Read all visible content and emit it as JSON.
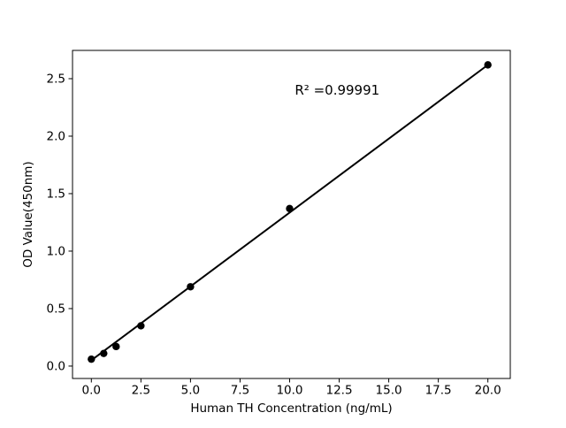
{
  "figure": {
    "background": "#ffffff"
  },
  "chart_data": {
    "type": "scatter",
    "title": "",
    "xlabel": "Human TH Concentration (ng/mL)",
    "ylabel": "OD Value(450nm)",
    "x": [
      0,
      0.625,
      1.25,
      2.5,
      5,
      10,
      20
    ],
    "y": [
      0.06,
      0.11,
      0.17,
      0.35,
      0.69,
      1.37,
      2.62
    ],
    "trendline": {
      "x": [
        0,
        20
      ],
      "y": [
        0.05,
        2.62
      ]
    },
    "annotation": {
      "text": "R² =0.99991",
      "x": 12.4,
      "y": 2.4
    },
    "r_squared": 0.99991,
    "xticks": [
      0,
      2.5,
      5,
      7.5,
      10,
      12.5,
      15,
      17.5,
      20
    ],
    "yticks": [
      0,
      0.5,
      1,
      1.5,
      2,
      2.5
    ],
    "xlim": [
      -0.95,
      21.13
    ],
    "ylim": [
      -0.108,
      2.746
    ],
    "grid": false,
    "legend": false,
    "marker_color": "#000000",
    "line_color": "#000000",
    "axis_color": "#000000",
    "text_color": "#000000"
  }
}
